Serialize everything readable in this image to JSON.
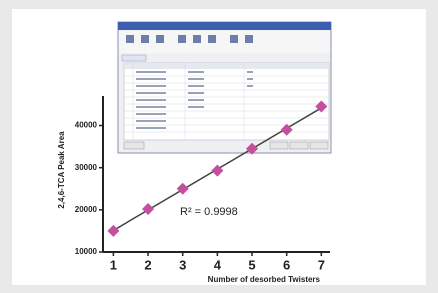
{
  "chart_data": {
    "type": "scatter",
    "y_label": "2,4,6-TCA Peak Area",
    "x_label": "Number of desorbed Twisters",
    "annotation": "R² = 0.9998",
    "x": [
      1,
      2,
      3,
      4,
      5,
      6,
      7
    ],
    "values": [
      15000,
      20200,
      25000,
      29300,
      34500,
      39000,
      44500
    ],
    "color": "#c2509c",
    "line_color": "#444444",
    "trendline": true,
    "xlim": [
      0.7,
      7.25
    ],
    "xticks": [
      1,
      2,
      3,
      4,
      5,
      6,
      7
    ],
    "ylim": [
      10000,
      47000
    ],
    "yticks": [
      10000,
      20000,
      30000,
      40000
    ]
  }
}
